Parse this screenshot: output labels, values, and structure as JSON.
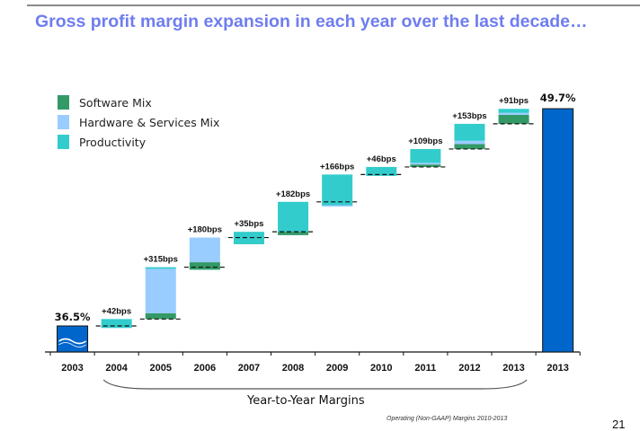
{
  "slide": {
    "title": "Gross profit margin expansion in each year over the last decade…",
    "axis_title": "Year-to-Year Margins",
    "footnote": "Operating (Non-GAAP) Margins 2010-2013",
    "page_number": "21"
  },
  "legend": [
    {
      "label": "Software Mix",
      "color": "#339966"
    },
    {
      "label": "Hardware & Services Mix",
      "color": "#99ccff"
    },
    {
      "label": "Productivity",
      "color": "#33cccc"
    }
  ],
  "chart_data": {
    "type": "bar",
    "subtype": "waterfall",
    "title": "Gross profit margin expansion in each year over the last decade…",
    "xlabel": "Year-to-Year Margins",
    "ylabel": "",
    "legend_position": "top-left",
    "grid": false,
    "colors": {
      "total": "#0066cc",
      "Software Mix": "#339966",
      "Hardware & Services Mix": "#99ccff",
      "Productivity": "#33cccc"
    },
    "categories": [
      "2003",
      "2004",
      "2005",
      "2006",
      "2007",
      "2008",
      "2009",
      "2010",
      "2011",
      "2012",
      "2013",
      "2013"
    ],
    "start_total": {
      "category": "2003",
      "value_pct": 36.5,
      "label": "36.5%"
    },
    "end_total": {
      "category": "2013",
      "value_pct": 49.7,
      "label": "49.7%"
    },
    "bracket": {
      "from": "2004",
      "to": "2013"
    },
    "increments": [
      {
        "category": "2004",
        "net_bps": 42,
        "label": "+42bps",
        "segments": [
          {
            "name": "Software Mix",
            "bps": -4
          },
          {
            "name": "Hardware & Services Mix",
            "bps": -8
          },
          {
            "name": "Productivity",
            "bps": 54
          }
        ]
      },
      {
        "category": "2005",
        "net_bps": 315,
        "label": "+315bps",
        "segments": [
          {
            "name": "Software Mix",
            "bps": 35
          },
          {
            "name": "Hardware & Services Mix",
            "bps": 270
          },
          {
            "name": "Productivity",
            "bps": 10
          }
        ]
      },
      {
        "category": "2006",
        "net_bps": 180,
        "label": "+180bps",
        "segments": [
          {
            "name": "Productivity",
            "bps": -15
          },
          {
            "name": "Software Mix",
            "bps": 45
          },
          {
            "name": "Hardware & Services Mix",
            "bps": 150
          }
        ]
      },
      {
        "category": "2007",
        "net_bps": 35,
        "label": "+35bps",
        "segments": [
          {
            "name": "Hardware & Services Mix",
            "bps": -20
          },
          {
            "name": "Software Mix",
            "bps": -20
          },
          {
            "name": "Productivity",
            "bps": 75
          }
        ]
      },
      {
        "category": "2008",
        "net_bps": 182,
        "label": "+182bps",
        "segments": [
          {
            "name": "Hardware & Services Mix",
            "bps": -20
          },
          {
            "name": "Software Mix",
            "bps": 20
          },
          {
            "name": "Productivity",
            "bps": 182
          }
        ]
      },
      {
        "category": "2009",
        "net_bps": 166,
        "label": "+166bps",
        "segments": [
          {
            "name": "Software Mix",
            "bps": -25
          },
          {
            "name": "Hardware & Services Mix",
            "bps": 5
          },
          {
            "name": "Productivity",
            "bps": 186
          }
        ]
      },
      {
        "category": "2010",
        "net_bps": 46,
        "label": "+46bps",
        "segments": [
          {
            "name": "Hardware & Services Mix",
            "bps": -8
          },
          {
            "name": "Productivity",
            "bps": 54
          }
        ]
      },
      {
        "category": "2011",
        "net_bps": 109,
        "label": "+109bps",
        "segments": [
          {
            "name": "Software Mix",
            "bps": 15
          },
          {
            "name": "Hardware & Services Mix",
            "bps": 10
          },
          {
            "name": "Productivity",
            "bps": 84
          }
        ]
      },
      {
        "category": "2012",
        "net_bps": 153,
        "label": "+153bps",
        "segments": [
          {
            "name": "Software Mix",
            "bps": 30
          },
          {
            "name": "Hardware & Services Mix",
            "bps": 20
          },
          {
            "name": "Productivity",
            "bps": 103
          }
        ]
      },
      {
        "category": "2013",
        "net_bps": 91,
        "label": "+91bps",
        "segments": [
          {
            "name": "Software Mix",
            "bps": 55
          },
          {
            "name": "Hardware & Services Mix",
            "bps": 12
          },
          {
            "name": "Productivity",
            "bps": 24
          }
        ]
      }
    ]
  }
}
